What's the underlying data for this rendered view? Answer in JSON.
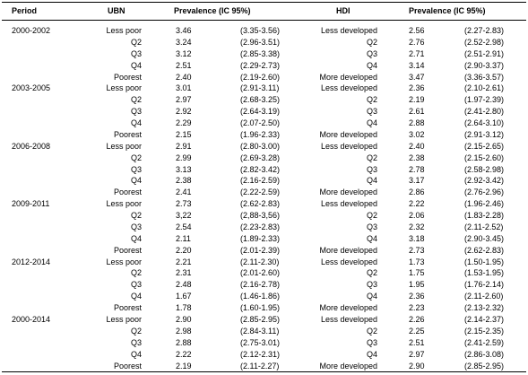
{
  "table": {
    "header": [
      "Period",
      "UBN",
      "Prevalence (IC 95%)",
      "HDI",
      "Prevalence (IC 95%)"
    ],
    "groups": [
      {
        "period": "2000-2002",
        "rows": [
          [
            "Less poor",
            "3.46",
            "(3.35-3.56)",
            "Less developed",
            "2.56",
            "(2.27-2.83)"
          ],
          [
            "Q2",
            "3.24",
            "(2.96-3.51)",
            "Q2",
            "2.76",
            "(2.52-2.98)"
          ],
          [
            "Q3",
            "3.12",
            "(2.85-3.38)",
            "Q3",
            "2.71",
            "(2.51-2.91)"
          ],
          [
            "Q4",
            "2.51",
            "(2.29-2.73)",
            "Q4",
            "3.14",
            "(2.90-3.37)"
          ],
          [
            "Poorest",
            "2.40",
            "(2.19-2.60)",
            "More developed",
            "3.47",
            "(3.36-3.57)"
          ]
        ]
      },
      {
        "period": "2003-2005",
        "rows": [
          [
            "Less poor",
            "3.01",
            "(2.91-3.11)",
            "Less developed",
            "2.36",
            "(2.10-2.61)"
          ],
          [
            "Q2",
            "2.97",
            "(2.68-3.25)",
            "Q2",
            "2.19",
            "(1.97-2.39)"
          ],
          [
            "Q3",
            "2.92",
            "(2.64-3.19)",
            "Q3",
            "2.61",
            "(2.41-2.80)"
          ],
          [
            "Q4",
            "2.29",
            "(2.07-2.50)",
            "Q4",
            "2.88",
            "(2.64-3.10)"
          ],
          [
            "Poorest",
            "2.15",
            "(1.96-2.33)",
            "More developed",
            "3.02",
            "(2.91-3.12)"
          ]
        ]
      },
      {
        "period": "2006-2008",
        "rows": [
          [
            "Less poor",
            "2.91",
            "(2.80-3.00)",
            "Less developed",
            "2.40",
            "(2.15-2.65)"
          ],
          [
            "Q2",
            "2.99",
            "(2.69-3.28)",
            "Q2",
            "2.38",
            "(2.15-2.60)"
          ],
          [
            "Q3",
            "3.13",
            "(2.82-3.42)",
            "Q3",
            "2.78",
            "(2.58-2.98)"
          ],
          [
            "Q4",
            "2.38",
            "(2.16-2.59)",
            "Q4",
            "3.17",
            "(2.92-3.42)"
          ],
          [
            "Poorest",
            "2.41",
            "(2.22-2.59)",
            "More developed",
            "2.86",
            "(2.76-2.96)"
          ]
        ]
      },
      {
        "period": "2009-2011",
        "rows": [
          [
            "Less poor",
            "2.73",
            "(2.62-2.83)",
            "Less developed",
            "2.22",
            "(1.96-2.46)"
          ],
          [
            "Q2",
            "3,22",
            "(2,88-3,56)",
            "Q2",
            "2.06",
            "(1.83-2.28)"
          ],
          [
            "Q3",
            "2.54",
            "(2.23-2.83)",
            "Q3",
            "2.32",
            "(2.11-2.52)"
          ],
          [
            "Q4",
            "2.11",
            "(1.89-2.33)",
            "Q4",
            "3.18",
            "(2.90-3.45)"
          ],
          [
            "Poorest",
            "2.20",
            "(2.01-2.39)",
            "More developed",
            "2.73",
            "(2.62-2.83)"
          ]
        ]
      },
      {
        "period": "2012-2014",
        "rows": [
          [
            "Less poor",
            "2.21",
            "(2.11-2.30)",
            "Less developed",
            "1.73",
            "(1.50-1.95)"
          ],
          [
            "Q2",
            "2.31",
            "(2.01-2.60)",
            "Q2",
            "1.75",
            "(1.53-1.95)"
          ],
          [
            "Q3",
            "2.48",
            "(2.16-2.78)",
            "Q3",
            "1.95",
            "(1.76-2.14)"
          ],
          [
            "Q4",
            "1.67",
            "(1.46-1.86)",
            "Q4",
            "2.36",
            "(2.11-2.60)"
          ],
          [
            "Poorest",
            "1.78",
            "(1.60-1.95)",
            "More developed",
            "2.23",
            "(2.13-2.32)"
          ]
        ]
      },
      {
        "period": "2000-2014",
        "rows": [
          [
            "Less poor",
            "2.90",
            "(2.85-2.95)",
            "Less developed",
            "2.26",
            "(2.14-2.37)"
          ],
          [
            "Q2",
            "2.98",
            "(2.84-3.11)",
            "Q2",
            "2.25",
            "(2.15-2.35)"
          ],
          [
            "Q3",
            "2.88",
            "(2.75-3.01)",
            "Q3",
            "2.51",
            "(2.41-2.59)"
          ],
          [
            "Q4",
            "2.22",
            "(2.12-2.31)",
            "Q4",
            "2.97",
            "(2.86-3.08)"
          ],
          [
            "Poorest",
            "2.19",
            "(2.11-2.27)",
            "More developed",
            "2.90",
            "(2.85-2.95)"
          ]
        ]
      }
    ]
  }
}
